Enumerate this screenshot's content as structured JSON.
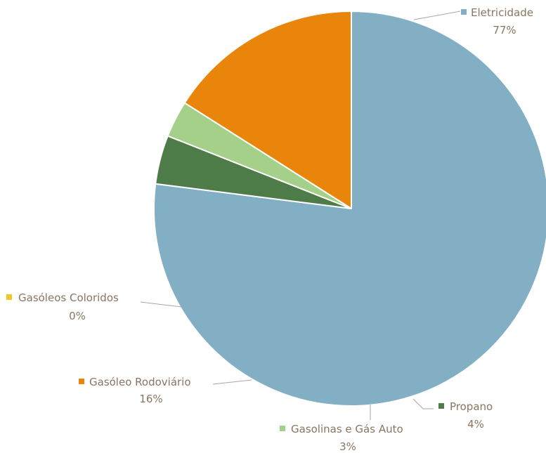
{
  "chart_data": {
    "type": "pie",
    "slices": [
      {
        "name": "Eletricidade",
        "value": 77,
        "label": "77%",
        "color": "#83AFC4"
      },
      {
        "name": "Propano",
        "value": 4,
        "label": "4%",
        "color": "#4E7C49"
      },
      {
        "name": "Gasolinas e Gás Auto",
        "value": 3,
        "label": "3%",
        "color": "#A4D08A"
      },
      {
        "name": "Gasóleo Rodoviário",
        "value": 16,
        "label": "16%",
        "color": "#E8850A"
      },
      {
        "name": "Gasóleos Coloridos",
        "value": 0,
        "label": "0%",
        "color": "#F2C623"
      }
    ],
    "start_angle_deg": 0,
    "direction": "clockwise",
    "legend": "none",
    "data_labels": "outside-with-leaders"
  }
}
